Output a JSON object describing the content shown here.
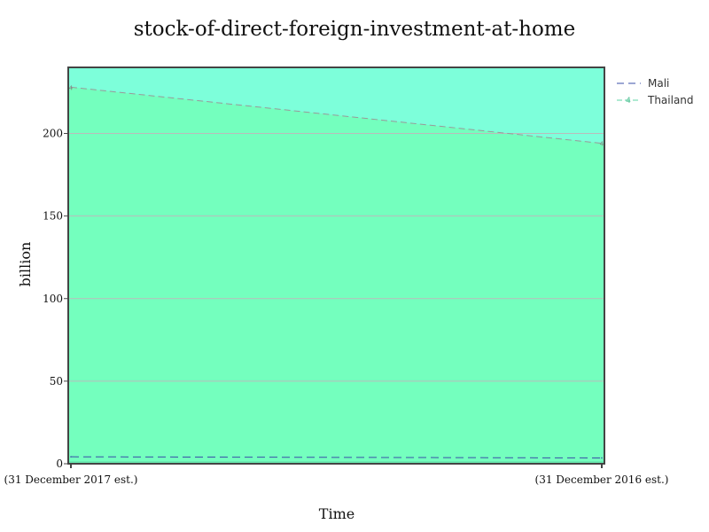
{
  "chart_data": {
    "type": "area",
    "title": "stock-of-direct-foreign-investment-at-home",
    "xlabel": "Time",
    "ylabel": "billion",
    "categories": [
      "(31 December 2017 est.)",
      "(31 December 2016 est.)"
    ],
    "ylim": [
      0,
      240
    ],
    "yticks": [
      0,
      50,
      100,
      150,
      200
    ],
    "grid": true,
    "legend_position": "top-right",
    "series": [
      {
        "name": "Mali",
        "values": [
          4.2,
          3.5
        ],
        "color": "#3a4fa8",
        "dash": "dashed",
        "fill": "#74ffbe"
      },
      {
        "name": "Thailand",
        "values": [
          228,
          194
        ],
        "color": "#999999",
        "dash": "dashed",
        "fill": "#7dffda",
        "legend_color": "#5fd6a4",
        "marker": "4"
      }
    ]
  }
}
